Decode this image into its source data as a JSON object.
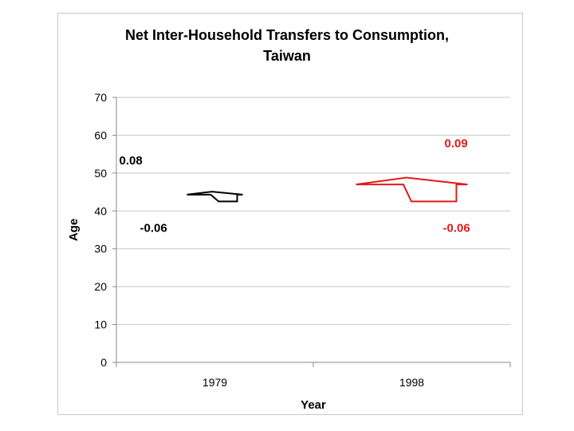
{
  "chart_data": {
    "type": "line",
    "title": "Net Inter-Household Transfers to Consumption,",
    "subtitle": "Taiwan",
    "xlabel": "Year",
    "ylabel": "Age",
    "ylim": [
      0,
      70
    ],
    "yticks": [
      0,
      10,
      20,
      30,
      40,
      50,
      60,
      70
    ],
    "categories": [
      "1979",
      "1998"
    ],
    "series": [
      {
        "category": "1979",
        "color": "#000000",
        "inflow_label": "0.08",
        "outflow_label": "-0.06",
        "inflow_age": 45.1,
        "mean_age": 44.3,
        "outflow_age": 42.5
      },
      {
        "category": "1998",
        "color": "#e31a1a",
        "inflow_label": "0.09",
        "outflow_label": "-0.06",
        "inflow_age": 48.8,
        "mean_age": 47.0,
        "outflow_age": 42.5
      }
    ]
  }
}
